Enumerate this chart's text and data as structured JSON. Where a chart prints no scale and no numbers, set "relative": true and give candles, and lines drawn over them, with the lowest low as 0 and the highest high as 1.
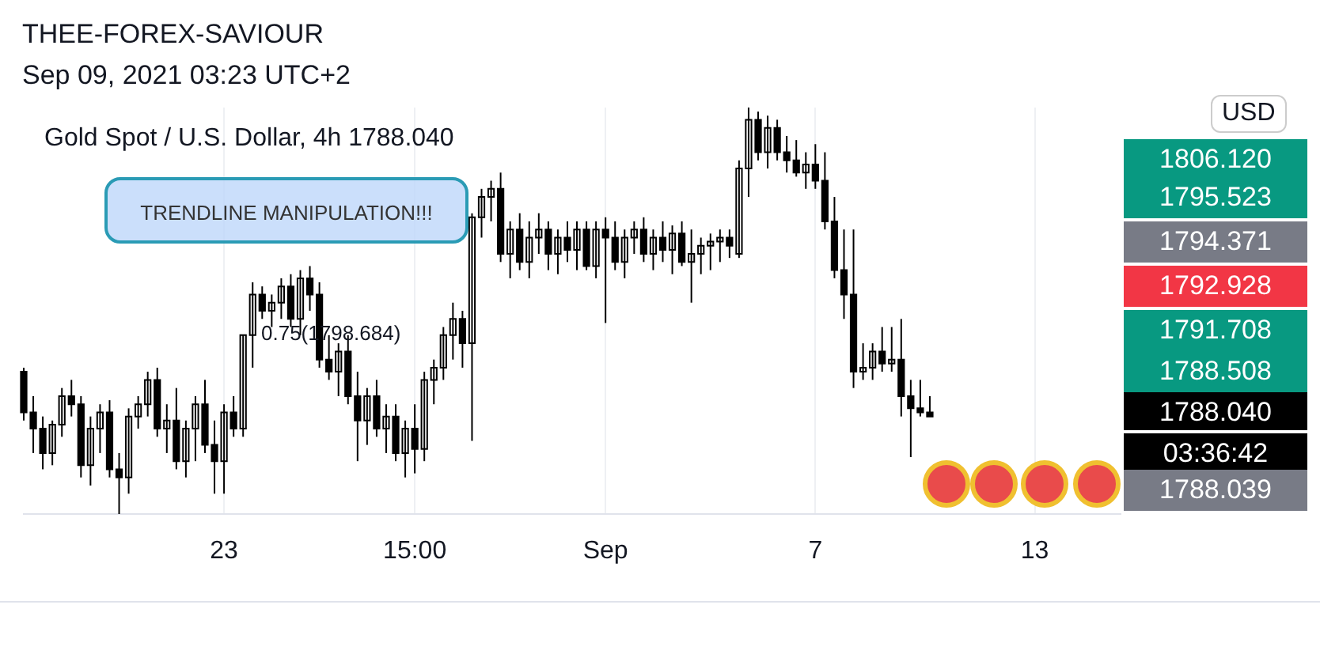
{
  "chart_data": {
    "type": "candlestick",
    "title": "Gold Spot / U.S. Dollar, 4h 1788.040",
    "relative": true,
    "color": "#000000",
    "grid": "x",
    "categories": [
      null,
      null,
      null,
      null,
      null,
      null,
      null,
      null,
      null,
      null,
      null,
      null,
      null,
      null,
      null,
      null,
      null,
      null,
      null,
      null,
      null,
      "23",
      null,
      null,
      null,
      null,
      null,
      null,
      null,
      null,
      null,
      null,
      null,
      null,
      null,
      null,
      null,
      null,
      null,
      null,
      null,
      "15:00",
      null,
      null,
      null,
      null,
      null,
      null,
      null,
      null,
      null,
      null,
      null,
      null,
      null,
      null,
      null,
      null,
      null,
      null,
      null,
      "Sep",
      null,
      null,
      null,
      null,
      null,
      null,
      null,
      null,
      null,
      null,
      null,
      null,
      null,
      null,
      null,
      null,
      null,
      null,
      null,
      null,
      null,
      "7",
      null,
      null,
      null,
      null,
      null,
      null,
      null,
      null,
      null,
      null,
      null,
      null,
      null,
      null,
      null,
      null,
      null,
      null,
      null,
      null,
      null,
      null,
      "13",
      null,
      null,
      null,
      null,
      null,
      null,
      null,
      null,
      null
    ],
    "ohlc": [
      [
        0.35,
        0.36,
        0.23,
        0.25
      ],
      [
        0.25,
        0.29,
        0.15,
        0.21
      ],
      [
        0.21,
        0.24,
        0.11,
        0.15
      ],
      [
        0.15,
        0.23,
        0.12,
        0.22
      ],
      [
        0.22,
        0.31,
        0.19,
        0.29
      ],
      [
        0.29,
        0.33,
        0.24,
        0.27
      ],
      [
        0.27,
        0.29,
        0.09,
        0.12
      ],
      [
        0.12,
        0.24,
        0.07,
        0.21
      ],
      [
        0.21,
        0.27,
        0.15,
        0.25
      ],
      [
        0.25,
        0.28,
        0.09,
        0.11
      ],
      [
        0.11,
        0.15,
        0,
        0.09
      ],
      [
        0.09,
        0.26,
        0.05,
        0.24
      ],
      [
        0.24,
        0.29,
        0.21,
        0.27
      ],
      [
        0.27,
        0.35,
        0.24,
        0.33
      ],
      [
        0.33,
        0.36,
        0.19,
        0.21
      ],
      [
        0.21,
        0.27,
        0.15,
        0.23
      ],
      [
        0.23,
        0.31,
        0.11,
        0.13
      ],
      [
        0.13,
        0.23,
        0.09,
        0.21
      ],
      [
        0.21,
        0.29,
        0.13,
        0.27
      ],
      [
        0.27,
        0.33,
        0.15,
        0.17
      ],
      [
        0.17,
        0.23,
        0.05,
        0.13
      ],
      [
        0.13,
        0.27,
        0.05,
        0.25
      ],
      [
        0.25,
        0.29,
        0.19,
        0.21
      ],
      [
        0.21,
        0.44,
        0.19,
        0.44
      ],
      [
        0.44,
        0.57,
        0.36,
        0.54
      ],
      [
        0.54,
        0.56,
        0.48,
        0.5
      ],
      [
        0.5,
        0.54,
        0.46,
        0.52
      ],
      [
        0.52,
        0.58,
        0.48,
        0.56
      ],
      [
        0.56,
        0.59,
        0.46,
        0.48
      ],
      [
        0.48,
        0.6,
        0.44,
        0.58
      ],
      [
        0.58,
        0.61,
        0.5,
        0.54
      ],
      [
        0.54,
        0.57,
        0.36,
        0.38
      ],
      [
        0.38,
        0.44,
        0.33,
        0.35
      ],
      [
        0.35,
        0.42,
        0.29,
        0.4
      ],
      [
        0.4,
        0.44,
        0.27,
        0.29
      ],
      [
        0.29,
        0.35,
        0.13,
        0.23
      ],
      [
        0.23,
        0.31,
        0.17,
        0.29
      ],
      [
        0.29,
        0.33,
        0.19,
        0.21
      ],
      [
        0.21,
        0.27,
        0.15,
        0.24
      ],
      [
        0.24,
        0.27,
        0.13,
        0.15
      ],
      [
        0.15,
        0.23,
        0.09,
        0.21
      ],
      [
        0.21,
        0.27,
        0.1,
        0.16
      ],
      [
        0.16,
        0.35,
        0.13,
        0.33
      ],
      [
        0.33,
        0.38,
        0.27,
        0.36
      ],
      [
        0.36,
        0.46,
        0.33,
        0.44
      ],
      [
        0.44,
        0.52,
        0.38,
        0.48
      ],
      [
        0.48,
        0.5,
        0.36,
        0.42
      ],
      [
        0.42,
        0.74,
        0.18,
        0.73
      ],
      [
        0.73,
        0.8,
        0.68,
        0.78
      ],
      [
        0.78,
        0.82,
        0.72,
        0.8
      ],
      [
        0.8,
        0.84,
        0.62,
        0.64
      ],
      [
        0.64,
        0.72,
        0.58,
        0.7
      ],
      [
        0.7,
        0.74,
        0.6,
        0.62
      ],
      [
        0.62,
        0.72,
        0.58,
        0.68
      ],
      [
        0.68,
        0.74,
        0.64,
        0.7
      ],
      [
        0.7,
        0.72,
        0.6,
        0.64
      ],
      [
        0.64,
        0.7,
        0.59,
        0.68
      ],
      [
        0.68,
        0.72,
        0.62,
        0.65
      ],
      [
        0.65,
        0.72,
        0.6,
        0.7
      ],
      [
        0.7,
        0.72,
        0.6,
        0.61
      ],
      [
        0.61,
        0.72,
        0.58,
        0.7
      ],
      [
        0.7,
        0.73,
        0.47,
        0.68
      ],
      [
        0.68,
        0.72,
        0.6,
        0.62
      ],
      [
        0.62,
        0.7,
        0.58,
        0.68
      ],
      [
        0.68,
        0.72,
        0.64,
        0.7
      ],
      [
        0.7,
        0.73,
        0.62,
        0.64
      ],
      [
        0.64,
        0.7,
        0.6,
        0.68
      ],
      [
        0.68,
        0.72,
        0.62,
        0.65
      ],
      [
        0.65,
        0.71,
        0.59,
        0.69
      ],
      [
        0.69,
        0.72,
        0.61,
        0.62
      ],
      [
        0.62,
        0.7,
        0.52,
        0.64
      ],
      [
        0.64,
        0.68,
        0.59,
        0.66
      ],
      [
        0.66,
        0.69,
        0.6,
        0.67
      ],
      [
        0.67,
        0.7,
        0.62,
        0.68
      ],
      [
        0.68,
        0.7,
        0.63,
        0.66
      ],
      [
        0.64,
        0.87,
        0.63,
        0.85
      ],
      [
        0.85,
        1,
        0.78,
        0.97
      ],
      [
        0.97,
        0.99,
        0.87,
        0.89
      ],
      [
        0.89,
        0.98,
        0.85,
        0.95
      ],
      [
        0.95,
        0.97,
        0.87,
        0.89
      ],
      [
        0.89,
        0.93,
        0.84,
        0.87
      ],
      [
        0.87,
        0.92,
        0.83,
        0.84
      ],
      [
        0.84,
        0.89,
        0.8,
        0.86
      ],
      [
        0.86,
        0.91,
        0.8,
        0.82
      ],
      [
        0.82,
        0.89,
        0.7,
        0.72
      ],
      [
        0.72,
        0.78,
        0.58,
        0.6
      ],
      [
        0.6,
        0.7,
        0.48,
        0.54
      ],
      [
        0.54,
        0.7,
        0.31,
        0.35
      ],
      [
        0.35,
        0.42,
        0.33,
        0.36
      ],
      [
        0.36,
        0.42,
        0.33,
        0.4
      ],
      [
        0.4,
        0.46,
        0.35,
        0.37
      ],
      [
        0.37,
        0.46,
        0.35,
        0.38
      ],
      [
        0.38,
        0.48,
        0.24,
        0.29
      ],
      [
        0.29,
        0.33,
        0.14,
        0.26
      ],
      [
        0.26,
        0.33,
        0.24,
        0.25
      ],
      [
        0.25,
        0.29,
        0.24,
        0.24
      ],
      null,
      null,
      null,
      null,
      null,
      null,
      null,
      null,
      null,
      null,
      null,
      null,
      null,
      null,
      null,
      null,
      null,
      null,
      null,
      null
    ],
    "annotations": [
      "THEE-FOREX-SAVIOUR",
      "Sep 09, 2021 03:23 UTC+2",
      "TRENDLINE MANIPULATION!!!",
      "0.75(1798.684)",
      "USD",
      "1806.120",
      "1795.523",
      "1794.371",
      "1792.928",
      "1791.708",
      "1788.508",
      "1788.040",
      "03:36:42",
      "1788.039"
    ]
  }
}
